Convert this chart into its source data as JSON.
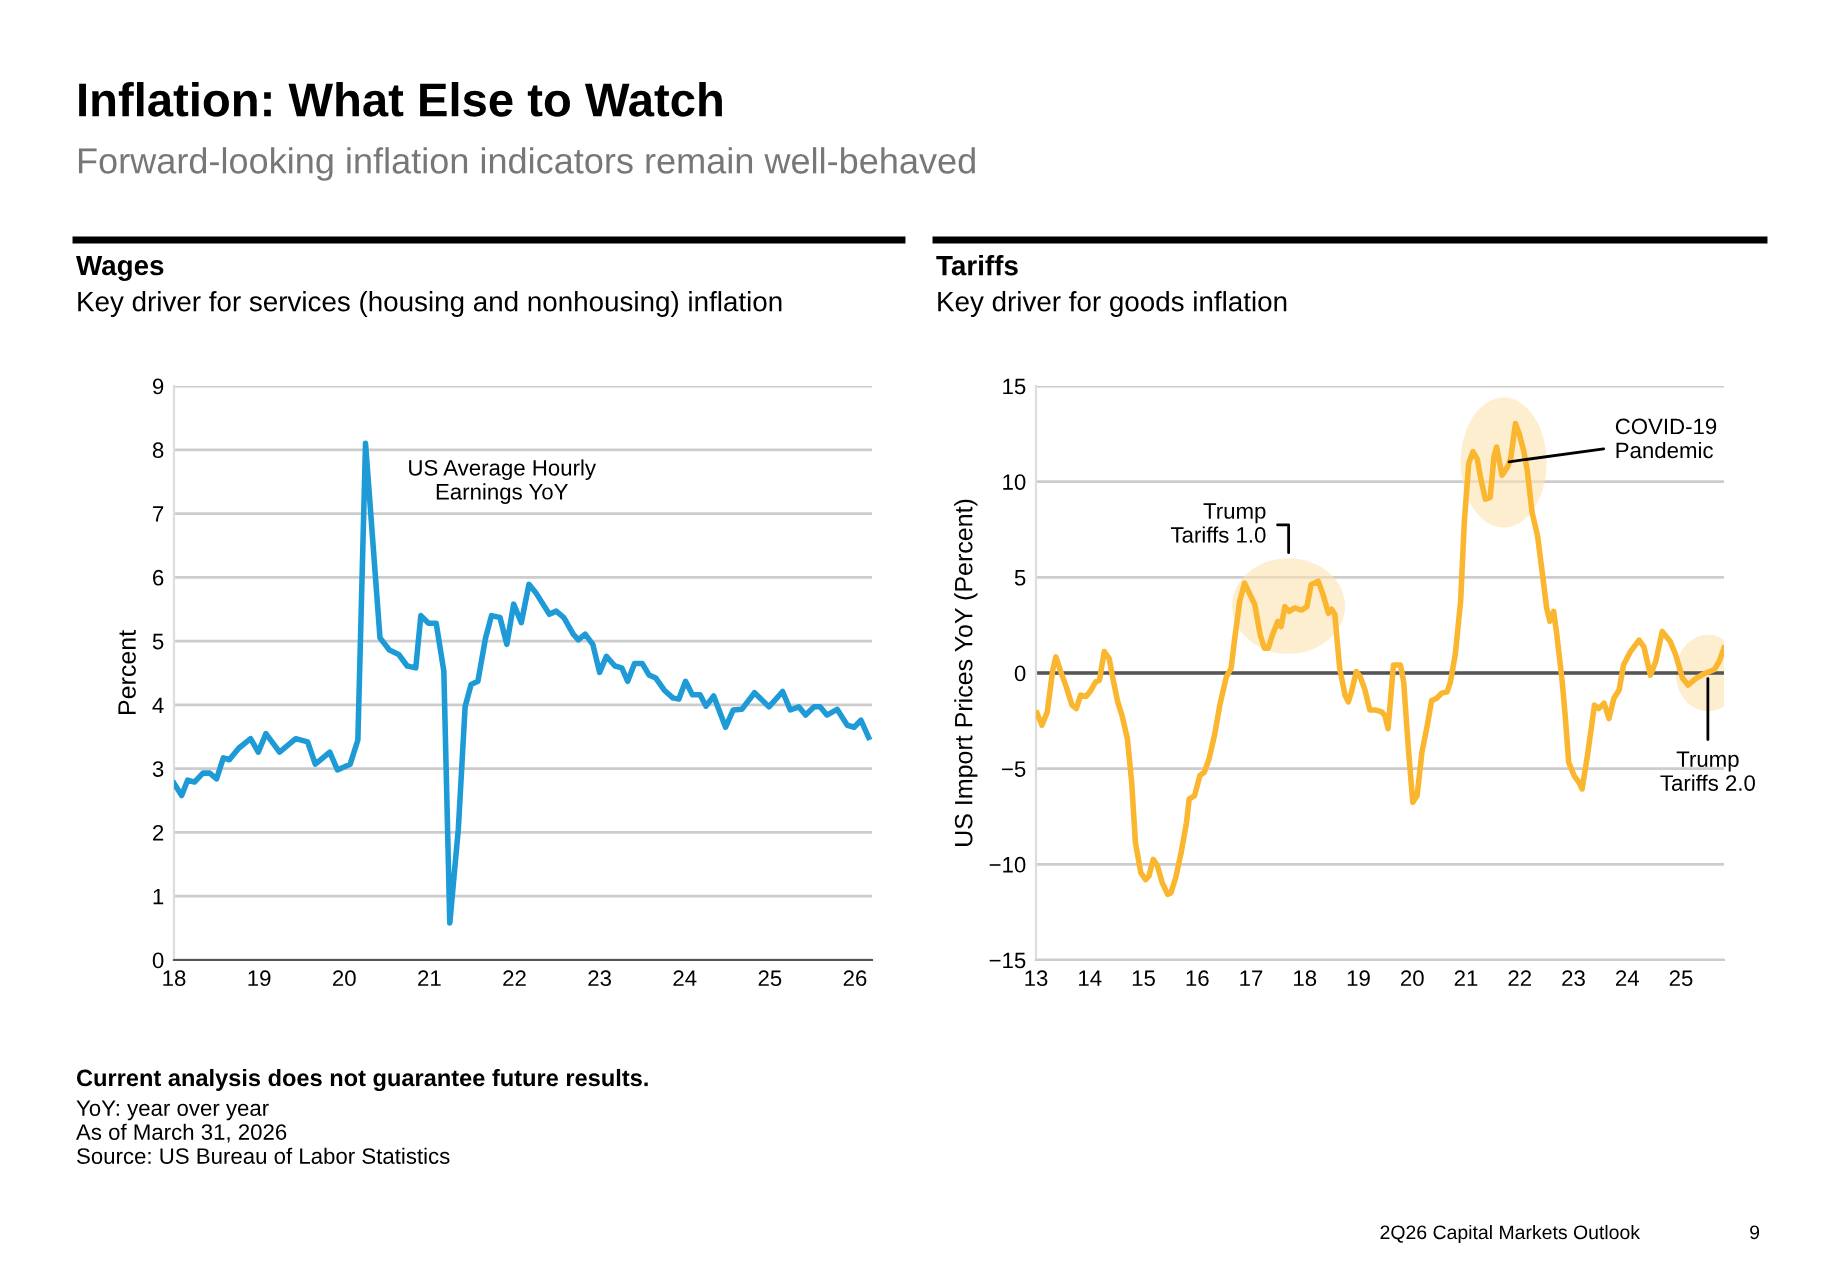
{
  "chart_data": [
    {
      "type": "other",
      "title": "Inflation: What Else to Watch",
      "subtitle": "Forward-looking inflation indicators remain well-behaved",
      "annotations": [
        "Current analysis does not guarantee future results.",
        "YoY: year over year",
        "As of March 31, 2026",
        "Source: US Bureau of Labor Statistics",
        "2Q26 Capital Markets Outlook",
        "9"
      ]
    },
    {
      "type": "line",
      "title": "Wages",
      "subtitle": "Key driver for services (housing and nonhousing) inflation",
      "ylabel": "Percent",
      "series": [
        {
          "name": "US Average Hourly Earnings YoY",
          "color": "#1e9bd7",
          "x": [
            2018.0,
            2018.09,
            2018.16,
            2018.24,
            2018.34,
            2018.42,
            2018.5,
            2018.58,
            2018.65,
            2018.76,
            2018.9,
            2018.99,
            2019.08,
            2019.24,
            2019.43,
            2019.57,
            2019.66,
            2019.83,
            2019.92,
            2020.07,
            2020.16,
            2020.25,
            2020.42,
            2020.53,
            2020.64,
            2020.74,
            2020.84,
            2020.9,
            2020.99,
            2021.08,
            2021.17,
            2021.24,
            2021.34,
            2021.42,
            2021.49,
            2021.57,
            2021.66,
            2021.73,
            2021.83,
            2021.91,
            2021.99,
            2022.08,
            2022.17,
            2022.25,
            2022.41,
            2022.49,
            2022.58,
            2022.69,
            2022.75,
            2022.83,
            2022.92,
            2023.0,
            2023.08,
            2023.18,
            2023.26,
            2023.33,
            2023.41,
            2023.5,
            2023.58,
            2023.66,
            2023.76,
            2023.86,
            2023.93,
            2024.01,
            2024.09,
            2024.18,
            2024.25,
            2024.34,
            2024.48,
            2024.57,
            2024.67,
            2024.82,
            2024.99,
            2025.15,
            2025.24,
            2025.34,
            2025.42,
            2025.52,
            2025.59,
            2025.67,
            2025.79,
            2025.91,
            2025.99,
            2026.07,
            2026.16
          ],
          "values": [
            2.77,
            2.58,
            2.82,
            2.79,
            2.93,
            2.93,
            2.84,
            3.17,
            3.14,
            3.32,
            3.47,
            3.26,
            3.55,
            3.26,
            3.47,
            3.42,
            3.07,
            3.26,
            2.98,
            3.07,
            3.45,
            8.1,
            5.05,
            4.86,
            4.79,
            4.61,
            4.58,
            5.4,
            5.28,
            5.28,
            4.53,
            0.58,
            2.05,
            3.97,
            4.32,
            4.37,
            5.05,
            5.4,
            5.37,
            4.95,
            5.58,
            5.29,
            5.89,
            5.76,
            5.42,
            5.47,
            5.37,
            5.11,
            5.02,
            5.11,
            4.95,
            4.51,
            4.76,
            4.61,
            4.58,
            4.37,
            4.65,
            4.65,
            4.47,
            4.42,
            4.23,
            4.11,
            4.09,
            4.37,
            4.16,
            4.16,
            3.98,
            4.14,
            3.65,
            3.92,
            3.93,
            4.19,
            3.97,
            4.21,
            3.92,
            3.97,
            3.84,
            3.97,
            3.97,
            3.84,
            3.93,
            3.68,
            3.65,
            3.76,
            3.49
          ]
        }
      ],
      "xlim": [
        2018,
        2026.2
      ],
      "xticks": [
        {
          "value": 2018,
          "label": "18"
        },
        {
          "value": 2019,
          "label": "19"
        },
        {
          "value": 2020,
          "label": "20"
        },
        {
          "value": 2021,
          "label": "21"
        },
        {
          "value": 2022,
          "label": "22"
        },
        {
          "value": 2023,
          "label": "23"
        },
        {
          "value": 2024,
          "label": "24"
        },
        {
          "value": 2025,
          "label": "25"
        },
        {
          "value": 2026,
          "label": "26"
        }
      ],
      "ylim": [
        0,
        9
      ],
      "yticks": [
        0,
        1,
        2,
        3,
        4,
        5,
        6,
        7,
        8,
        9
      ],
      "grid": "y",
      "legend": false,
      "marker": "none",
      "line_style": "solid"
    },
    {
      "type": "line",
      "title": "Tariffs",
      "subtitle": "Key driver for goods inflation",
      "ylabel": "US Import Prices YoY (Percent)",
      "series": [
        {
          "color": "#fbb630",
          "x": [
            2013.02,
            2013.11,
            2013.21,
            2013.31,
            2013.37,
            2013.46,
            2013.56,
            2013.67,
            2013.75,
            2013.83,
            2013.93,
            2014.02,
            2014.11,
            2014.18,
            2014.27,
            2014.36,
            2014.43,
            2014.52,
            2014.6,
            2014.7,
            2014.78,
            2014.85,
            2014.95,
            2015.04,
            2015.1,
            2015.18,
            2015.26,
            2015.35,
            2015.45,
            2015.51,
            2015.6,
            2015.7,
            2015.8,
            2015.85,
            2015.95,
            2016.05,
            2016.13,
            2016.22,
            2016.32,
            2016.42,
            2016.54,
            2016.63,
            2016.69,
            2016.79,
            2016.88,
            2016.97,
            2017.07,
            2017.17,
            2017.25,
            2017.32,
            2017.4,
            2017.5,
            2017.56,
            2017.63,
            2017.71,
            2017.81,
            2017.94,
            2018.04,
            2018.12,
            2018.25,
            2018.34,
            2018.44,
            2018.5,
            2018.56,
            2018.65,
            2018.75,
            2018.81,
            2018.87,
            2018.96,
            2019.03,
            2019.12,
            2019.21,
            2019.31,
            2019.43,
            2019.49,
            2019.55,
            2019.65,
            2019.78,
            2019.84,
            2019.93,
            2020.01,
            2020.09,
            2020.18,
            2020.28,
            2020.36,
            2020.45,
            2020.55,
            2020.65,
            2020.71,
            2020.8,
            2020.9,
            2020.97,
            2021.05,
            2021.13,
            2021.21,
            2021.27,
            2021.36,
            2021.45,
            2021.52,
            2021.57,
            2021.67,
            2021.77,
            2021.83,
            2021.92,
            2021.99,
            2022.07,
            2022.14,
            2022.23,
            2022.33,
            2022.42,
            2022.5,
            2022.56,
            2022.63,
            2022.69,
            2022.79,
            2022.85,
            2022.91,
            2023.01,
            2023.1,
            2023.16,
            2023.26,
            2023.39,
            2023.47,
            2023.57,
            2023.66,
            2023.75,
            2023.85,
            2023.93,
            2024.06,
            2024.22,
            2024.31,
            2024.43,
            2024.53,
            2024.65,
            2024.8,
            2024.9,
            2025.03,
            2025.13,
            2025.28,
            2025.43,
            2025.62,
            2025.71,
            2025.8
          ],
          "values": [
            -2.1,
            -2.73,
            -2.03,
            0.14,
            0.84,
            0.07,
            -0.7,
            -1.68,
            -1.86,
            -1.16,
            -1.23,
            -0.91,
            -0.46,
            -0.39,
            1.12,
            0.77,
            -0.28,
            -1.51,
            -2.21,
            -3.43,
            -5.71,
            -8.87,
            -10.44,
            -10.8,
            -10.62,
            -9.74,
            -10.09,
            -10.97,
            -11.57,
            -11.5,
            -10.69,
            -9.39,
            -7.82,
            -6.59,
            -6.41,
            -5.36,
            -5.19,
            -4.49,
            -3.26,
            -1.68,
            -0.21,
            0.25,
            1.65,
            3.75,
            4.7,
            4.17,
            3.58,
            2.0,
            1.3,
            1.3,
            2.0,
            2.7,
            2.42,
            3.47,
            3.22,
            3.4,
            3.29,
            3.47,
            4.63,
            4.8,
            4.1,
            3.12,
            3.33,
            3.05,
            0.25,
            -1.16,
            -1.51,
            -0.98,
            0.07,
            -0.18,
            -0.88,
            -1.93,
            -1.93,
            -2.03,
            -2.21,
            -2.91,
            0.42,
            0.42,
            -0.46,
            -4.03,
            -6.76,
            -6.41,
            -4.14,
            -2.73,
            -1.44,
            -1.33,
            -1.05,
            -0.98,
            -0.46,
            0.95,
            3.75,
            7.96,
            10.94,
            11.57,
            11.18,
            10.23,
            9.08,
            9.18,
            11.29,
            11.81,
            10.34,
            10.76,
            11.18,
            13.04,
            12.51,
            11.64,
            10.59,
            8.38,
            7.19,
            5.22,
            3.4,
            2.7,
            3.22,
            2.0,
            -0.46,
            -2.38,
            -4.66,
            -5.36,
            -5.71,
            -6.06,
            -4.31,
            -1.68,
            -1.86,
            -1.58,
            -2.38,
            -1.33,
            -0.88,
            0.42,
            1.12,
            1.72,
            1.37,
            -0.11,
            0.6,
            2.17,
            1.65,
            0.95,
            -0.28,
            -0.63,
            -0.28,
            -0.04,
            0.18,
            0.6,
            1.3
          ]
        }
      ],
      "xlim": [
        2013,
        2025.8
      ],
      "xticks": [
        {
          "value": 2013,
          "label": "13"
        },
        {
          "value": 2014,
          "label": "14"
        },
        {
          "value": 2015,
          "label": "15"
        },
        {
          "value": 2016,
          "label": "16"
        },
        {
          "value": 2017,
          "label": "17"
        },
        {
          "value": 2018,
          "label": "18"
        },
        {
          "value": 2019,
          "label": "19"
        },
        {
          "value": 2020,
          "label": "20"
        },
        {
          "value": 2021,
          "label": "21"
        },
        {
          "value": 2022,
          "label": "22"
        },
        {
          "value": 2023,
          "label": "23"
        },
        {
          "value": 2024,
          "label": "24"
        },
        {
          "value": 2025,
          "label": "25"
        }
      ],
      "ylim": [
        -15,
        15
      ],
      "yticks": [
        {
          "value": -15,
          "label": "−15"
        },
        {
          "value": -10,
          "label": "−10"
        },
        {
          "value": -5,
          "label": "−5"
        },
        0,
        5,
        10,
        15
      ],
      "ref_lines": [
        {
          "axis": "y",
          "value": 0,
          "color": "#555555"
        }
      ],
      "annotations": [
        "Trump\nTariffs 1.0",
        {
          "text": "COVID-19\nPandemic",
          "x": 2021.7,
          "y": 11
        },
        {
          "text": "Trump\nTariffs 2.0",
          "x": 2025.5,
          "y": 0
        }
      ],
      "grid": "y",
      "legend": false,
      "marker": "none",
      "line_style": "solid"
    }
  ]
}
